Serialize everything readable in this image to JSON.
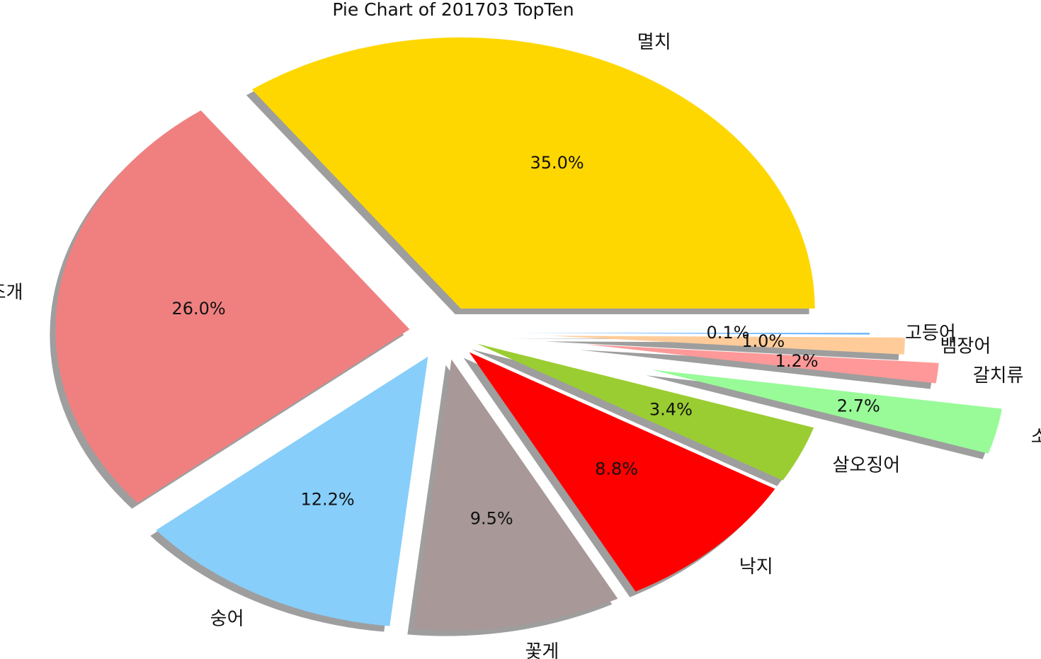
{
  "chart_data": {
    "type": "pie",
    "title": "Pie Chart of 201703 TopTen",
    "slices": [
      {
        "label": "멸치",
        "value": 35.0,
        "pct_label": "35.0%",
        "color": "#FFD700"
      },
      {
        "label": "키조개",
        "value": 26.0,
        "pct_label": "26.0%",
        "color": "#F08080"
      },
      {
        "label": "숭어",
        "value": 12.2,
        "pct_label": "12.2%",
        "color": "#87CEFA"
      },
      {
        "label": "꽃게",
        "value": 9.5,
        "pct_label": "9.5%",
        "color": "#A89898"
      },
      {
        "label": "낙지",
        "value": 8.8,
        "pct_label": "8.8%",
        "color": "#FF0000"
      },
      {
        "label": "살오징어",
        "value": 3.4,
        "pct_label": "3.4%",
        "color": "#9ACD32"
      },
      {
        "label": "소라",
        "value": 2.7,
        "pct_label": "2.7%",
        "color": "#98FB98"
      },
      {
        "label": "갈치류",
        "value": 1.2,
        "pct_label": "1.2%",
        "color": "#FF9999"
      },
      {
        "label": "뱀장어",
        "value": 1.0,
        "pct_label": "1.0%",
        "color": "#FFCC99"
      },
      {
        "label": "고등어",
        "value": 0.1,
        "pct_label": "0.1%",
        "color": "#66B3FF"
      }
    ],
    "shadow": true,
    "exploded": true
  }
}
